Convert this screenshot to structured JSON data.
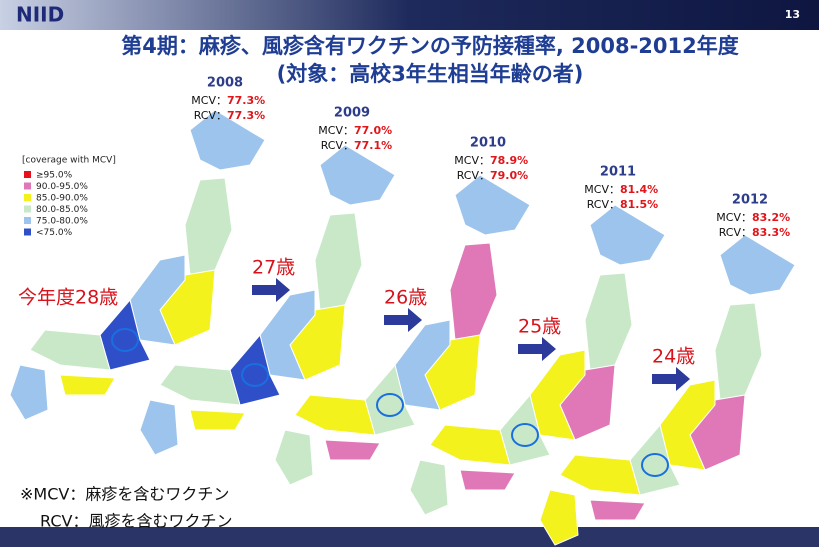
{
  "header": {
    "logo": "NIID",
    "slide_number": "13",
    "title_line1": "第4期：麻疹、風疹含有ワクチンの予防接種率, 2008-2012年度",
    "title_line2": "(対象：高校3年生相当年齢の者)"
  },
  "legend": {
    "title": "[coverage with MCV]",
    "items": [
      {
        "label": "≥95.0%",
        "color": "#e8101a"
      },
      {
        "label": "90.0-95.0%",
        "color": "#e078b8"
      },
      {
        "label": "85.0-90.0%",
        "color": "#f4f21c"
      },
      {
        "label": "80.0-85.0%",
        "color": "#c8e8c8"
      },
      {
        "label": "75.0-80.0%",
        "color": "#9cc4ec"
      },
      {
        "label": "<75.0%",
        "color": "#2f4fc8"
      }
    ]
  },
  "labels": {
    "mcv": "MCV：",
    "rcv": "RCV："
  },
  "panels": [
    {
      "year": "2008",
      "mcv": "77.3%",
      "rcv": "77.3%",
      "age": "今年度28歳"
    },
    {
      "year": "2009",
      "mcv": "77.0%",
      "rcv": "77.1%",
      "age": "27歳"
    },
    {
      "year": "2010",
      "mcv": "78.9%",
      "rcv": "79.0%",
      "age": "26歳"
    },
    {
      "year": "2011",
      "mcv": "81.4%",
      "rcv": "81.5%",
      "age": "25歳"
    },
    {
      "year": "2012",
      "mcv": "83.2%",
      "rcv": "83.3%",
      "age": "24歳"
    }
  ],
  "footnote": [
    "※MCV：麻疹を含むワクチン",
    "RCV：風疹を含むワクチン"
  ]
}
